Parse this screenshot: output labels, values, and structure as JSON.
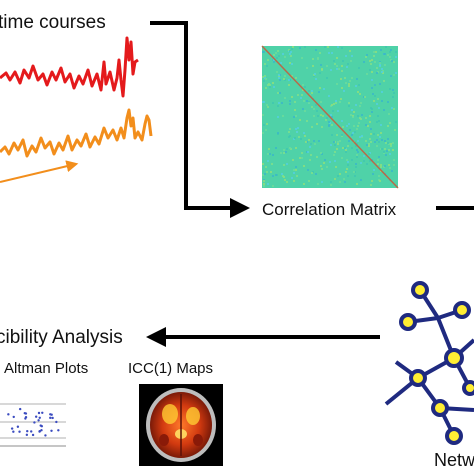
{
  "labels": {
    "time_courses": "time courses",
    "correlation_matrix": "Correlation Matrix",
    "reproducibility_analysis": "cibility Analysis",
    "bland_altman": "Altman Plots",
    "icc_maps": "ICC(1) Maps",
    "network": "Netw"
  },
  "colors": {
    "red_trace": "#e41a1c",
    "orange_trace": "#f28e1c",
    "arrow": "#000000",
    "matrix_base": "#4fd2a8",
    "node_fill": "#ffee33",
    "node_stroke": "#1f2a80"
  },
  "icons": {
    "matrix": "correlation-matrix-heatmap",
    "network": "network-graph-icon",
    "brain": "brain-icc-map",
    "scatter": "bland-altman-scatter"
  }
}
